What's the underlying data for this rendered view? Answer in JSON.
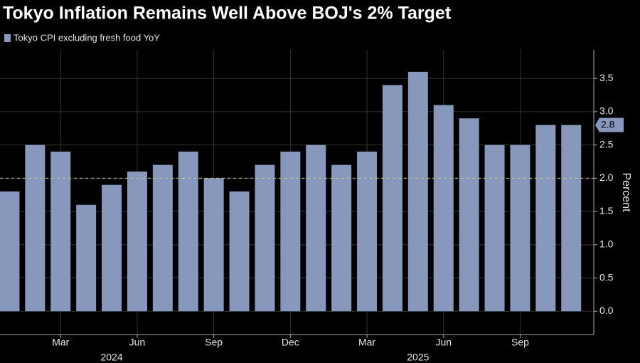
{
  "chart_data": {
    "type": "bar",
    "title": "Tokyo Inflation Remains Well Above BOJ's 2% Target",
    "ylabel": "Percent",
    "series": [
      {
        "name": "Tokyo CPI excluding fresh food YoY",
        "color": "#8898bc",
        "values": [
          1.8,
          2.5,
          2.4,
          1.6,
          1.9,
          2.1,
          2.2,
          2.4,
          2.0,
          1.8,
          2.2,
          2.4,
          2.5,
          2.2,
          2.4,
          3.4,
          3.6,
          3.1,
          2.9,
          2.5,
          2.5,
          2.8,
          2.8
        ]
      }
    ],
    "categories": [
      null,
      null,
      "Mar",
      null,
      null,
      "Jun",
      null,
      null,
      "Sep",
      null,
      null,
      "Dec",
      null,
      null,
      "Mar",
      null,
      null,
      "Jun",
      null,
      null,
      "Sep",
      null,
      null
    ],
    "year_labels": [
      {
        "index": 2024,
        "at": 4
      },
      {
        "index": 2025,
        "at": 16
      }
    ],
    "ylim": [
      -0.35,
      3.93
    ],
    "yticks": [
      {
        "value": 0,
        "label": "0.0"
      },
      0.5,
      {
        "value": 1,
        "label": "1.0"
      },
      1.5,
      {
        "value": 2,
        "label": "2.0"
      },
      2.5,
      {
        "value": 3,
        "label": "3.0"
      },
      3.5
    ],
    "reference_line": 2,
    "reference_color": "#c8c88a",
    "grid": true,
    "axis_side": "right"
  }
}
